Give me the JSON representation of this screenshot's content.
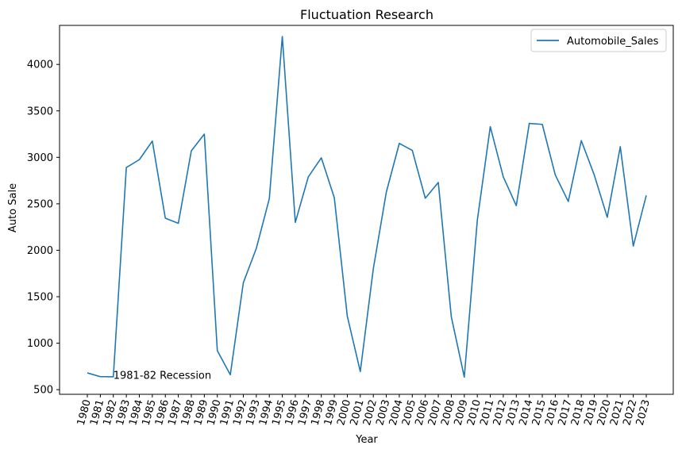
{
  "chart_data": {
    "type": "line",
    "title": "Fluctuation Research",
    "xlabel": "Year",
    "ylabel": "Auto Sale",
    "x": [
      1980,
      1981,
      1982,
      1983,
      1984,
      1985,
      1986,
      1987,
      1988,
      1989,
      1990,
      1991,
      1992,
      1993,
      1994,
      1995,
      1996,
      1997,
      1998,
      1999,
      2000,
      2001,
      2002,
      2003,
      2004,
      2005,
      2006,
      2007,
      2008,
      2009,
      2010,
      2011,
      2012,
      2013,
      2014,
      2015,
      2016,
      2017,
      2018,
      2019,
      2020,
      2021,
      2022,
      2023
    ],
    "series": [
      {
        "name": "Automobile_Sales",
        "color": "#1f77b4",
        "values": [
          680,
          640,
          638,
          2890,
          2975,
          3175,
          2345,
          2290,
          3070,
          3250,
          920,
          660,
          1650,
          2020,
          2555,
          4300,
          2300,
          2790,
          2995,
          2565,
          1290,
          695,
          1800,
          2625,
          3150,
          3075,
          2560,
          2730,
          1285,
          635,
          2320,
          3330,
          2790,
          2480,
          3365,
          3355,
          2810,
          2525,
          3180,
          2810,
          2355,
          3115,
          2045,
          2590
        ]
      }
    ],
    "ylim": [
      450,
      4420
    ],
    "xlim": [
      1979.3,
      1980.7
    ],
    "yticks": [
      500,
      1000,
      1500,
      2000,
      2500,
      3000,
      3500,
      4000
    ],
    "legend": {
      "placement": "top-right"
    },
    "grid": false,
    "annotations": [
      {
        "text": "1981-82 Recession",
        "x": 1982,
        "y": 650
      }
    ]
  }
}
